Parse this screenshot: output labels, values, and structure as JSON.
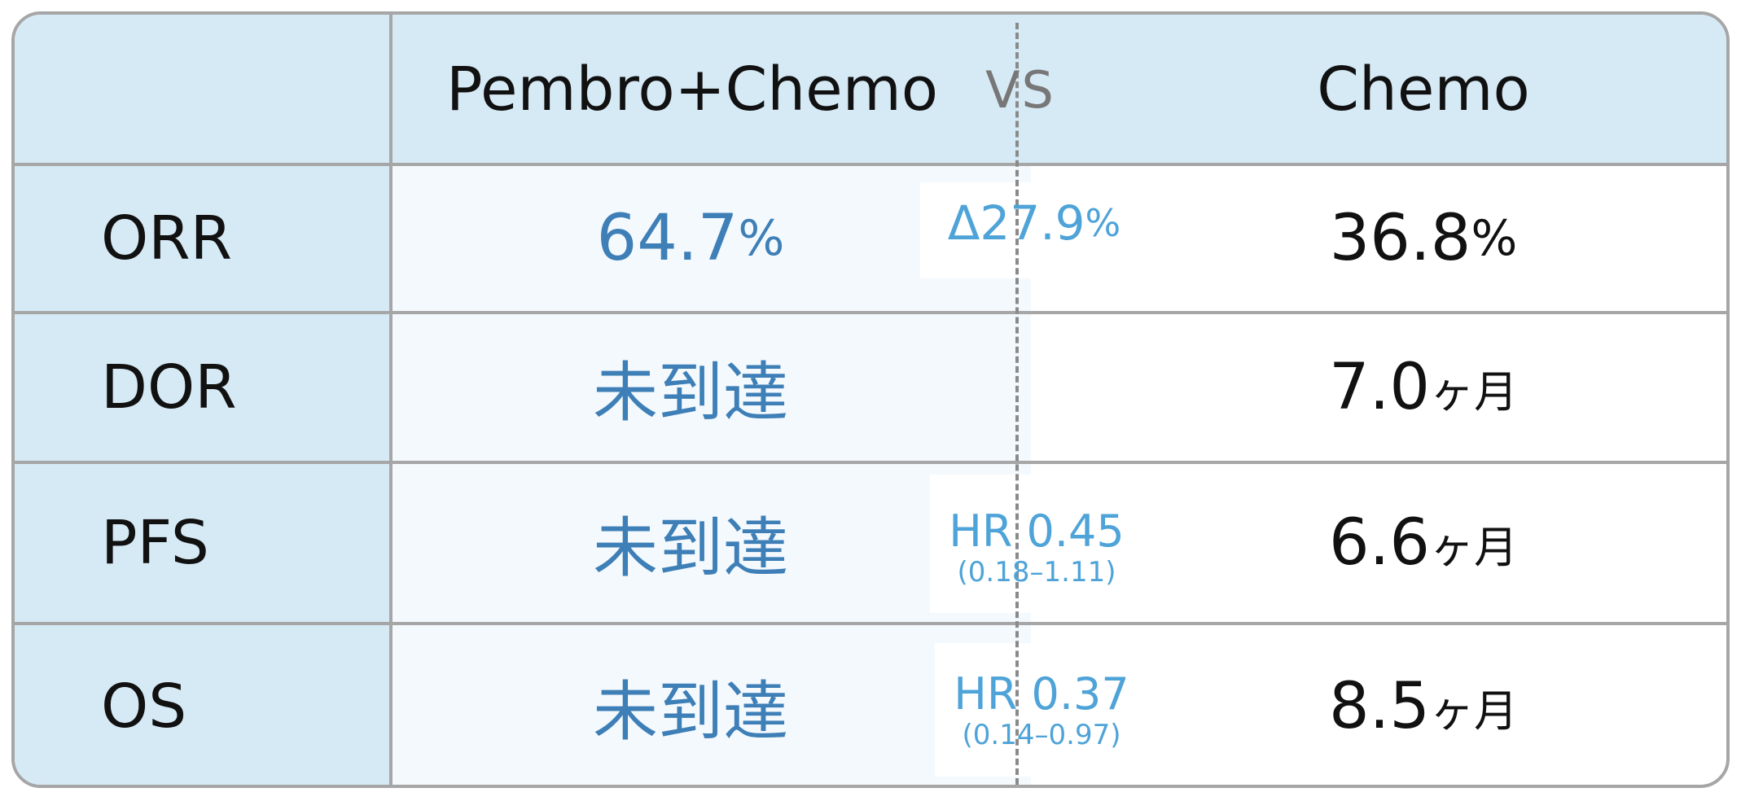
{
  "header": {
    "left": "Pembro+Chemo",
    "vs": "VS",
    "right": "Chemo"
  },
  "rows": [
    {
      "label": "ORR",
      "left_value": "64.7",
      "left_unit": "%",
      "delta": "Δ27.9",
      "delta_unit": "%",
      "right_value": "36.8",
      "right_unit": "%"
    },
    {
      "label": "DOR",
      "left_value": "未到達",
      "right_value": "7.0",
      "right_unit": "ヶ月"
    },
    {
      "label": "PFS",
      "left_value": "未到達",
      "hr": "HR 0.45",
      "ci": "(0.18–1.11)",
      "right_value": "6.6",
      "right_unit": "ヶ月"
    },
    {
      "label": "OS",
      "left_value": "未到達",
      "hr": "HR 0.37",
      "ci": "(0.14–0.97)",
      "right_value": "8.5",
      "right_unit": "ヶ月"
    }
  ],
  "colors": {
    "header_bg": "#d6eaf6",
    "left_col_bg": "#f4f9fe",
    "value_blue": "#3d7fb6",
    "delta_blue": "#4ea3d8",
    "grid": "#a6a6a6"
  }
}
